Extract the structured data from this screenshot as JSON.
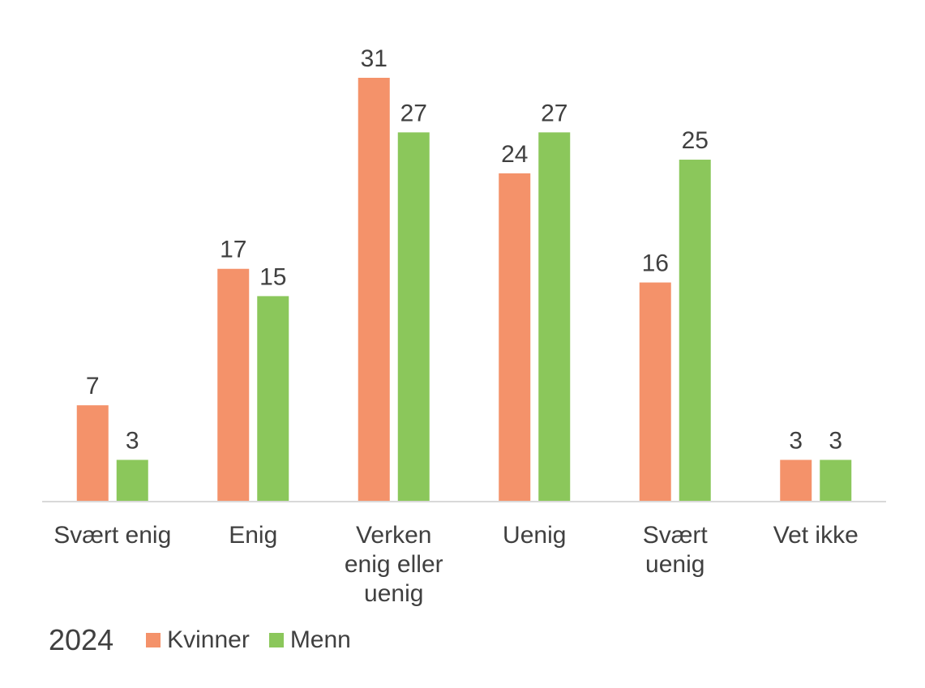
{
  "chart_data": {
    "type": "bar",
    "categories": [
      [
        "Svært enig"
      ],
      [
        "Enig"
      ],
      [
        "Verken",
        "enig eller",
        "uenig"
      ],
      [
        "Uenig"
      ],
      [
        "Svært",
        "uenig"
      ],
      [
        "Vet ikke"
      ]
    ],
    "series": [
      {
        "name": "Kvinner",
        "color": "#F4926A",
        "values": [
          7,
          17,
          31,
          24,
          16,
          3
        ]
      },
      {
        "name": "Menn",
        "color": "#8BC75B",
        "values": [
          3,
          15,
          27,
          27,
          25,
          3
        ]
      }
    ],
    "ylim": [
      0,
      31
    ],
    "grid": false,
    "legend_position": "bottom-left"
  },
  "legend": {
    "title": "2024",
    "items": [
      {
        "label": "Kvinner",
        "color": "#F4926A"
      },
      {
        "label": "Menn",
        "color": "#8BC75B"
      }
    ]
  }
}
